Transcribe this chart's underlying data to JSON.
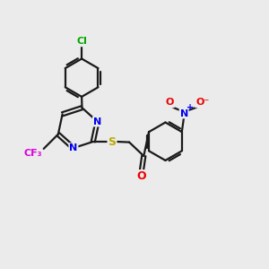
{
  "background_color": "#ebebeb",
  "bond_color": "#1a1a1a",
  "bond_width": 1.6,
  "atom_colors": {
    "Cl": "#00aa00",
    "N": "#0000ee",
    "S": "#bbaa00",
    "O": "#ee0000",
    "F": "#dd00dd",
    "C": "#1a1a1a"
  },
  "figsize": [
    3.0,
    3.0
  ],
  "dpi": 100
}
